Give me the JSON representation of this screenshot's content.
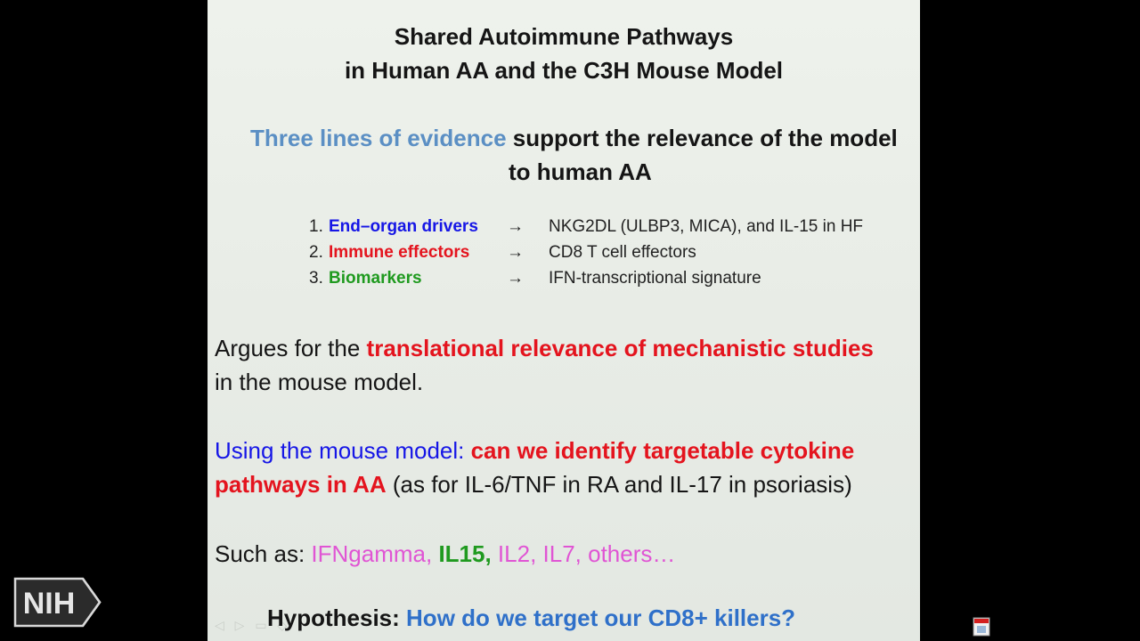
{
  "slide": {
    "title_line1": "Shared Autoimmune Pathways",
    "title_line2": "in Human AA and the C3H Mouse Model",
    "evidence_highlight": "Three lines of evidence",
    "evidence_rest": " support the relevance of the model",
    "evidence_line2": "to human AA",
    "list": [
      {
        "num": "1.",
        "label": "End–organ drivers",
        "arrow": "→",
        "detail": "NKG2DL (ULBP3, MICA), and IL-15 in HF"
      },
      {
        "num": "2.",
        "label": "Immune effectors",
        "arrow": "→",
        "detail": "CD8 T cell effectors"
      },
      {
        "num": "3.",
        "label": "Biomarkers",
        "arrow": "→",
        "detail": "IFN-transcriptional signature"
      }
    ],
    "argues_prefix": "Argues for the ",
    "argues_highlight": "translational relevance of mechanistic studies",
    "argues_line2": "in the mouse model.",
    "using_prefix": "Using the mouse model: ",
    "using_highlight": "can we identify targetable cytokine",
    "using_highlight2": "pathways in AA",
    "using_rest": "  (as for IL-6/TNF in RA and IL-17 in psoriasis)",
    "such_as_label": "Such as:  ",
    "such_as_1": "IFNgamma, ",
    "such_as_2": "IL15, ",
    "such_as_3": "IL2, IL7, others…",
    "hypothesis_label": "Hypothesis:  ",
    "hypothesis_question": "How do we target our CD8+ killers?"
  },
  "logo": {
    "text": "NIH"
  },
  "colors": {
    "slide_bg": "#e8ece6",
    "evidence_blue": "#5b8fc4",
    "list_blue": "#1616e6",
    "highlight_red": "#e4141e",
    "biomarker_green": "#1f9a1f",
    "cytokine_pink": "#e055d4",
    "question_blue": "#2f70c9"
  },
  "icons": [
    "nih-logo-icon",
    "slide-nav-controls-icon",
    "presentation-icon"
  ]
}
